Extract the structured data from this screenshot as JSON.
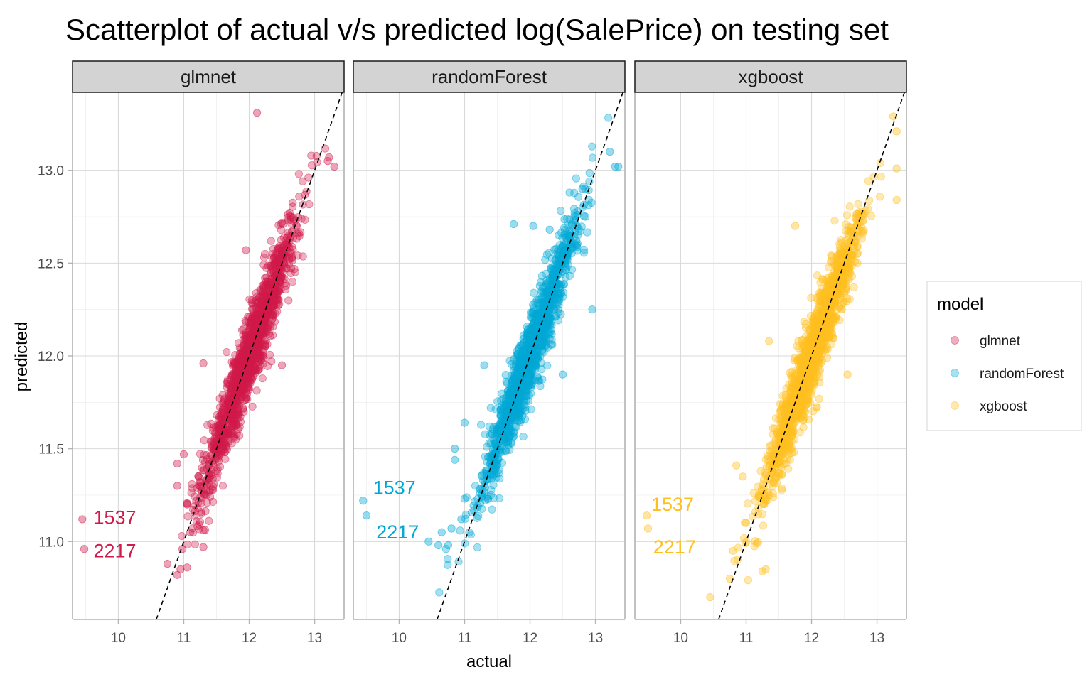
{
  "chart_data": {
    "type": "scatter",
    "title": "Scatterplot of actual v/s predicted log(SalePrice) on testing set",
    "xlabel": "actual",
    "ylabel": "predicted",
    "xlim": [
      9.3,
      13.45
    ],
    "ylim": [
      10.58,
      13.42
    ],
    "x_ticks": [
      10,
      11,
      12,
      13
    ],
    "x_tick_labels": [
      "10",
      "11",
      "12",
      "13"
    ],
    "y_ticks": [
      11.0,
      11.5,
      12.0,
      12.5,
      13.0
    ],
    "y_tick_labels": [
      "11.0",
      "11.5",
      "12.0",
      "12.5",
      "13.0"
    ],
    "reference_line": {
      "slope": 1,
      "intercept": 0,
      "style": "dashed"
    },
    "grid": true,
    "legend": {
      "title": "model",
      "placement": "right"
    },
    "series": [
      {
        "name": "glmnet",
        "color": "#D01A4A",
        "n_points": 1400,
        "center": [
          12.0,
          12.0
        ],
        "noise_sd": 0.085,
        "points": [
          [
            9.45,
            11.12
          ],
          [
            9.48,
            10.96
          ],
          [
            11.95,
            12.57
          ],
          [
            12.12,
            13.31
          ],
          [
            10.75,
            10.88
          ],
          [
            10.95,
            10.85
          ],
          [
            11.05,
            10.86
          ],
          [
            10.9,
            10.82
          ],
          [
            11.3,
            11.96
          ],
          [
            10.9,
            11.42
          ],
          [
            10.9,
            11.3
          ],
          [
            11.05,
            11.2
          ],
          [
            11.1,
            11.05
          ],
          [
            11.3,
            10.97
          ],
          [
            11.3,
            11.06
          ],
          [
            11.0,
            11.47
          ],
          [
            13.2,
            13.05
          ],
          [
            13.3,
            13.02
          ],
          [
            13.22,
            13.07
          ],
          [
            12.5,
            11.95
          ],
          [
            11.35,
            11.25
          ],
          [
            10.98,
            10.96
          ],
          [
            11.6,
            11.5
          ]
        ],
        "labels": [
          {
            "text": "1537",
            "x": 9.62,
            "y": 11.13
          },
          {
            "text": "2217",
            "x": 9.62,
            "y": 10.95
          }
        ]
      },
      {
        "name": "randomForest",
        "color": "#00A8D6",
        "n_points": 1400,
        "center": [
          12.0,
          12.0
        ],
        "noise_sd": 0.085,
        "points": [
          [
            9.45,
            11.22
          ],
          [
            9.5,
            11.14
          ],
          [
            10.45,
            11.0
          ],
          [
            10.65,
            11.05
          ],
          [
            10.75,
            10.98
          ],
          [
            10.8,
            11.07
          ],
          [
            10.95,
            11.12
          ],
          [
            10.85,
            11.5
          ],
          [
            10.85,
            11.44
          ],
          [
            11.0,
            11.64
          ],
          [
            11.75,
            12.71
          ],
          [
            12.05,
            12.7
          ],
          [
            12.3,
            12.68
          ],
          [
            12.95,
            12.25
          ],
          [
            13.3,
            13.02
          ],
          [
            13.35,
            13.02
          ],
          [
            13.22,
            13.1
          ],
          [
            11.3,
            11.95
          ],
          [
            11.5,
            11.6
          ],
          [
            12.5,
            11.9
          ],
          [
            12.8,
            12.9
          ],
          [
            10.6,
            10.98
          ]
        ],
        "labels": [
          {
            "text": "1537",
            "x": 9.6,
            "y": 11.29
          },
          {
            "text": "2217",
            "x": 9.65,
            "y": 11.05
          }
        ]
      },
      {
        "name": "xgboost",
        "color": "#FFC01F",
        "n_points": 1400,
        "center": [
          12.0,
          12.0
        ],
        "noise_sd": 0.085,
        "points": [
          [
            9.48,
            11.14
          ],
          [
            9.5,
            11.07
          ],
          [
            10.45,
            10.7
          ],
          [
            10.75,
            10.8
          ],
          [
            10.8,
            10.95
          ],
          [
            11.25,
            10.84
          ],
          [
            11.3,
            10.85
          ],
          [
            11.0,
            11.1
          ],
          [
            10.95,
            11.35
          ],
          [
            10.85,
            11.41
          ],
          [
            11.35,
            12.08
          ],
          [
            11.75,
            12.7
          ],
          [
            13.3,
            13.21
          ],
          [
            13.3,
            13.01
          ],
          [
            13.3,
            12.84
          ],
          [
            13.25,
            13.29
          ],
          [
            12.55,
            11.9
          ],
          [
            12.45,
            12.55
          ],
          [
            11.55,
            11.36
          ],
          [
            11.3,
            11.22
          ],
          [
            12.7,
            12.5
          ]
        ],
        "labels": [
          {
            "text": "1537",
            "x": 9.55,
            "y": 11.2
          },
          {
            "text": "2217",
            "x": 9.58,
            "y": 10.97
          }
        ]
      }
    ]
  }
}
